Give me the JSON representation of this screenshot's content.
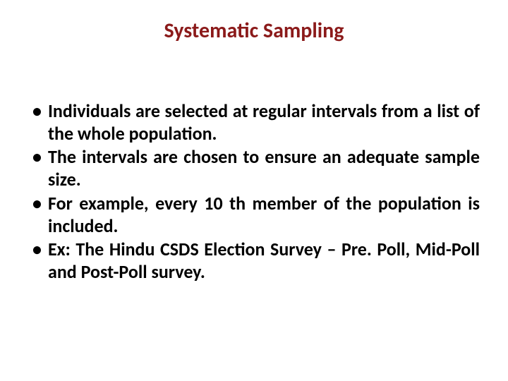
{
  "title": {
    "text": "Systematic Sampling",
    "color": "#8b1a1a",
    "fontsize": 30
  },
  "bullets": {
    "items": [
      "Individuals are selected at regular intervals from a list of the whole population.",
      "The intervals are chosen to ensure an adequate sample size.",
      "For example, every 10 th member of the population is included.",
      "Ex: The Hindu CSDS Election Survey – Pre. Poll, Mid-Poll and Post-Poll survey."
    ],
    "color": "#000000",
    "fontsize": 26,
    "lineheight": 1.22
  },
  "background_color": "#ffffff"
}
